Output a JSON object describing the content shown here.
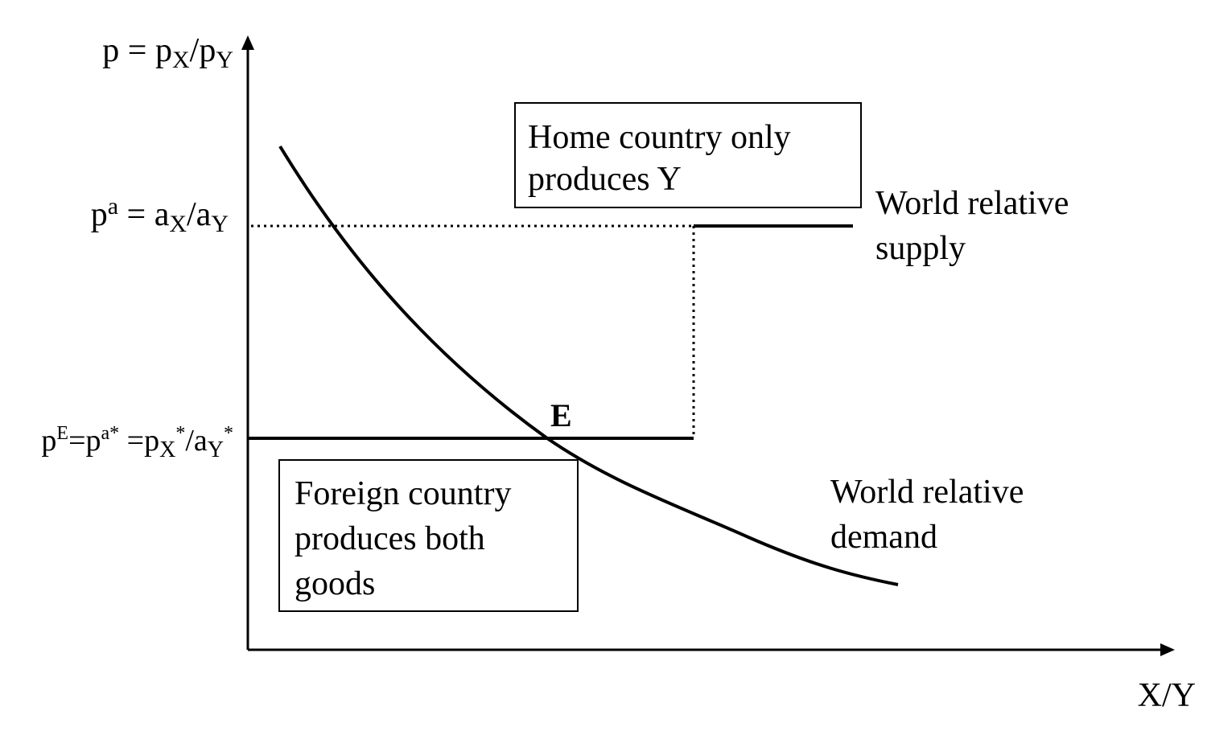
{
  "axes": {
    "y_label": {
      "p1": "p = p",
      "s1": "X",
      "p2": "/p",
      "s2": "Y"
    },
    "x_label": "X/Y"
  },
  "levels": {
    "autarky": {
      "p1": "p",
      "sup": "a",
      "p2": " = a",
      "s1": "X",
      "p3": "/a",
      "s2": "Y"
    },
    "equilibrium": {
      "p1": "p",
      "sup1": "E",
      "p2": "=p",
      "sup2": "a*",
      "p3": " =p",
      "s1": "X",
      "sup3": "*",
      "p4": "/a",
      "s2": "Y",
      "sup4": "*"
    }
  },
  "boxes": {
    "home": [
      "Home country only",
      "produces Y"
    ],
    "foreign": [
      "Foreign country",
      "produces both",
      "goods"
    ]
  },
  "curves": {
    "supply": [
      "World relative",
      "supply"
    ],
    "demand": [
      "World relative",
      "demand"
    ]
  },
  "point": "E",
  "colors": {
    "ink": "#000000",
    "background": "#ffffff"
  }
}
